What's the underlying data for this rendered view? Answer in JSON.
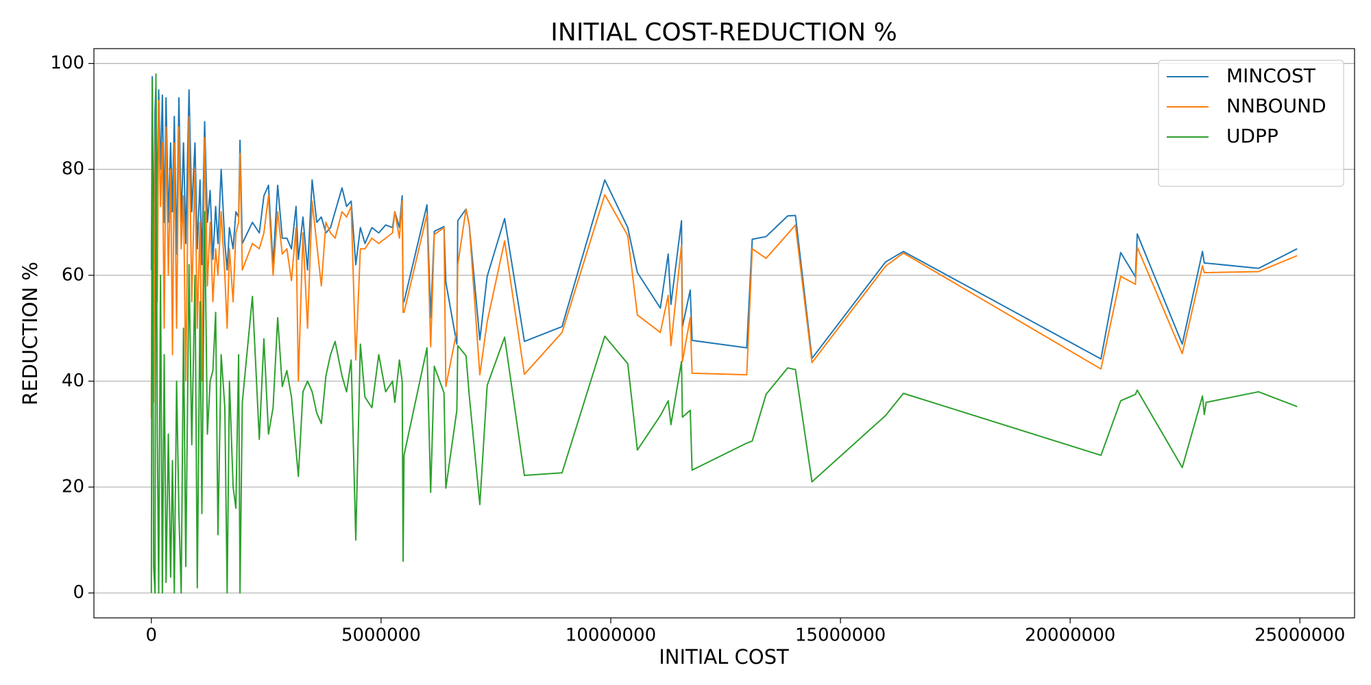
{
  "chart_data": {
    "type": "line",
    "title": "INITIAL COST-REDUCTION %",
    "x_label": "INITIAL COST",
    "y_label": "REDUCTION %",
    "x": [
      0,
      20000,
      50000,
      80000,
      100000,
      130000,
      160000,
      200000,
      240000,
      280000,
      320000,
      370000,
      420000,
      460000,
      500000,
      550000,
      600000,
      650000,
      700000,
      750000,
      820000,
      880000,
      950000,
      1000000,
      1060000,
      1100000,
      1160000,
      1220000,
      1280000,
      1340000,
      1400000,
      1450000,
      1520000,
      1600000,
      1650000,
      1700000,
      1780000,
      1840000,
      1900000,
      1930000,
      1980000,
      2200000,
      2350000,
      2450000,
      2550000,
      2650000,
      2750000,
      2850000,
      2950000,
      3050000,
      3150000,
      3200000,
      3300000,
      3400000,
      3500000,
      3600000,
      3700000,
      3800000,
      3900000,
      4000000,
      4150000,
      4250000,
      4350000,
      4450000,
      4550000,
      4650000,
      4800000,
      4950000,
      5100000,
      5250000,
      5300000,
      5400000,
      5460000,
      5480000,
      5500000,
      6000000,
      6080000,
      6160000,
      6370000,
      6410000,
      6650000,
      6670000,
      6850000,
      6920000,
      7150000,
      7310000,
      7690000,
      8120000,
      8940000,
      9870000,
      10370000,
      10580000,
      11080000,
      11250000,
      11310000,
      11540000,
      11560000,
      11730000,
      11770000,
      12960000,
      13080000,
      13380000,
      13850000,
      14020000,
      14380000,
      15980000,
      16370000,
      20670000,
      21100000,
      21420000,
      21460000,
      22440000,
      22880000,
      22920000,
      22960000,
      24100000,
      24940000
    ],
    "series": [
      {
        "name": "MINCOST",
        "color": "#1f77b4",
        "values": [
          61,
          97.5,
          62,
          91,
          96,
          70,
          95,
          80,
          94,
          70,
          93.5,
          70,
          85,
          72,
          90,
          64,
          93.5,
          70,
          85,
          66,
          95,
          72,
          85,
          65,
          78,
          62,
          89,
          70,
          76,
          63,
          73,
          66,
          80,
          66,
          61,
          69,
          65,
          72,
          71,
          85.5,
          66,
          70,
          68,
          75,
          77,
          62,
          77,
          67,
          67,
          65,
          73,
          63,
          71,
          61,
          78,
          70,
          71,
          68,
          69,
          72,
          76.5,
          73,
          74,
          62,
          69,
          66,
          69,
          68,
          69.5,
          69,
          72,
          69,
          75,
          55,
          55,
          73.3,
          52,
          68.3,
          69.2,
          58.7,
          47,
          70.3,
          72.5,
          69.5,
          47.8,
          59.8,
          70.7,
          47.5,
          50.3,
          78,
          69,
          60.5,
          53.8,
          64,
          54.5,
          70.3,
          50.3,
          57.2,
          47.7,
          46.3,
          66.8,
          67.3,
          71.2,
          71.3,
          44.3,
          62.5,
          64.5,
          44.2,
          64.3,
          59.7,
          67.8,
          47,
          64.5,
          62.3,
          62.3,
          61.3,
          65
        ]
      },
      {
        "name": "NNBOUND",
        "color": "#ff7f0e",
        "values": [
          33,
          95,
          36,
          80,
          94,
          55,
          93,
          73,
          85,
          50,
          88,
          60,
          80,
          45,
          85,
          50,
          88,
          65,
          75,
          40,
          90,
          55,
          80,
          50,
          70,
          40,
          86,
          58,
          70,
          55,
          65,
          60,
          72,
          60,
          50,
          65,
          55,
          68,
          70,
          83,
          61,
          66,
          65,
          68,
          75,
          60,
          72,
          64,
          65,
          59,
          69,
          40,
          68,
          50,
          74,
          66,
          58,
          70,
          68,
          67,
          72,
          71,
          73,
          44,
          65,
          65,
          67,
          66,
          67,
          68,
          72,
          67,
          74,
          53,
          53,
          71.5,
          46.5,
          67.7,
          69,
          39,
          49.5,
          62,
          72.5,
          69.5,
          41.2,
          51.2,
          66.5,
          41.3,
          49.2,
          75.2,
          67.5,
          52.5,
          49.2,
          56.2,
          46.7,
          65.7,
          43.7,
          52,
          41.5,
          41.2,
          65,
          63.2,
          67.8,
          69.5,
          43.5,
          61.7,
          64.2,
          42.3,
          59.8,
          58.3,
          65.3,
          45.2,
          61.8,
          60.5,
          60.5,
          60.7,
          63.7
        ]
      },
      {
        "name": "UDPP",
        "color": "#2ca02c",
        "values": [
          0,
          97,
          5,
          0,
          98,
          30,
          0,
          60,
          0,
          45,
          2,
          30,
          3,
          25,
          0,
          40,
          15,
          0,
          50,
          5,
          62,
          28,
          60,
          1,
          55,
          15,
          72,
          30,
          40,
          42,
          53,
          11,
          45,
          35,
          0,
          40,
          20,
          16,
          45,
          0,
          36,
          56,
          29,
          48,
          30,
          35,
          52,
          39,
          42,
          37,
          27,
          22,
          38,
          40,
          38,
          34,
          32,
          41,
          45,
          47.5,
          41,
          38,
          44,
          10,
          47,
          37,
          35,
          45,
          38,
          40,
          36,
          44,
          40,
          6,
          26,
          46.3,
          19,
          42.8,
          37.8,
          19.8,
          34.5,
          46.7,
          44.8,
          37.3,
          16.7,
          39.2,
          48.3,
          22.2,
          22.7,
          48.5,
          43.3,
          27,
          33.5,
          36.3,
          31.8,
          43.7,
          33.2,
          34.5,
          23.2,
          28.3,
          28.7,
          37.5,
          42.5,
          42.2,
          21,
          33.5,
          37.7,
          26,
          36.3,
          37.5,
          38.3,
          23.7,
          37.2,
          33.7,
          36,
          38,
          35.2
        ]
      }
    ],
    "xlim": [
      -1250000,
      26190000
    ],
    "ylim": [
      -4.7,
      102.8
    ],
    "xticks": [
      0,
      5000000,
      10000000,
      15000000,
      20000000,
      25000000
    ],
    "yticks": [
      0,
      20,
      40,
      60,
      80,
      100
    ],
    "grid": "y",
    "legend": "upper right"
  }
}
